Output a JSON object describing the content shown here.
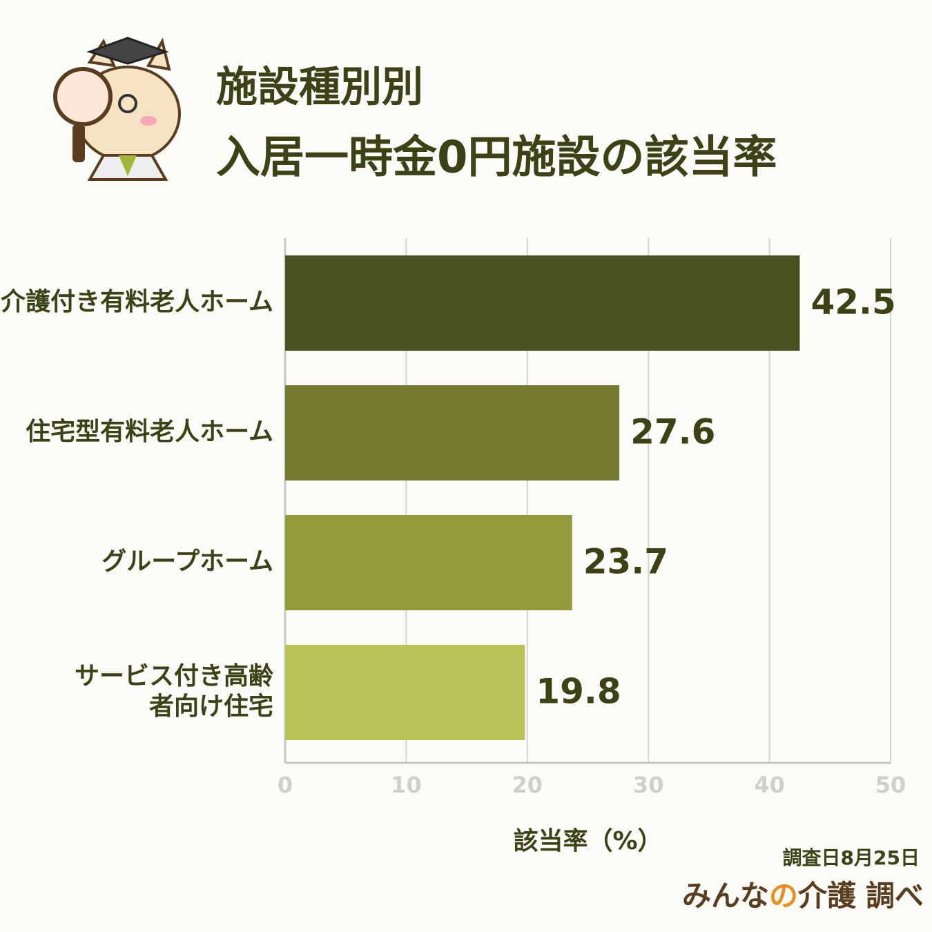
{
  "chart_data": {
    "type": "bar",
    "orientation": "horizontal",
    "title": [
      "施設種別別",
      "入居一時金0円施設の該当率"
    ],
    "categories": [
      "介護付き有料老人ホーム",
      "住宅型有料老人ホーム",
      "グループホーム",
      [
        "サービス付き高齢",
        "者向け住宅"
      ]
    ],
    "values": [
      42.5,
      27.6,
      23.7,
      19.8
    ],
    "colors": [
      "#4b5121",
      "#767b31",
      "#949a3c",
      "#bac358"
    ],
    "xlim": [
      0,
      50
    ],
    "xticks": [
      0,
      10,
      20,
      30,
      40,
      50
    ],
    "grid": true,
    "xlabel": "該当率（%）",
    "note": "調査日8月25日",
    "source": [
      "みんな",
      "の",
      "介護",
      "調べ"
    ]
  }
}
